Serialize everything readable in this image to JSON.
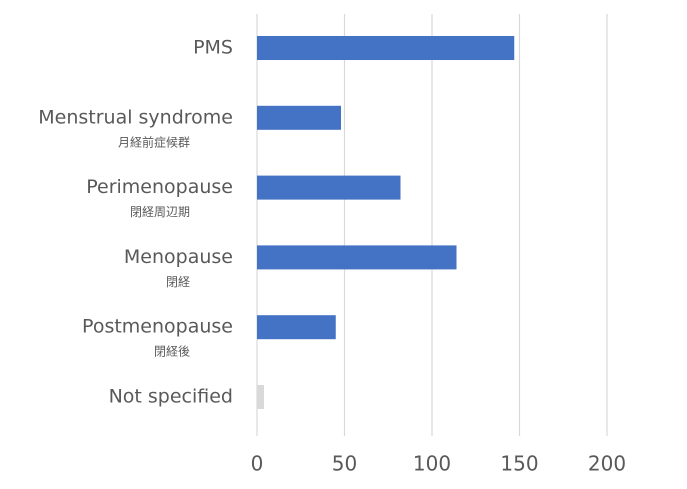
{
  "chart_data": {
    "type": "hbar",
    "categories": [
      [
        "PMS"
      ],
      [
        "Menstrual syndrome",
        "月経前症候群"
      ],
      [
        "Perimenopause",
        "閉経周辺期"
      ],
      [
        "Menopause",
        "閉経"
      ],
      [
        "Postmenopause",
        "閉経後"
      ],
      [
        "Not specified"
      ]
    ],
    "values": [
      147,
      48,
      82,
      114,
      45,
      4
    ],
    "colors": [
      "#4472c4",
      "#4472c4",
      "#4472c4",
      "#4472c4",
      "#4472c4",
      "#d9d9d9"
    ],
    "xlim": [
      0,
      200
    ],
    "xticks": [
      0,
      50,
      100,
      150,
      200
    ],
    "grid": true
  }
}
